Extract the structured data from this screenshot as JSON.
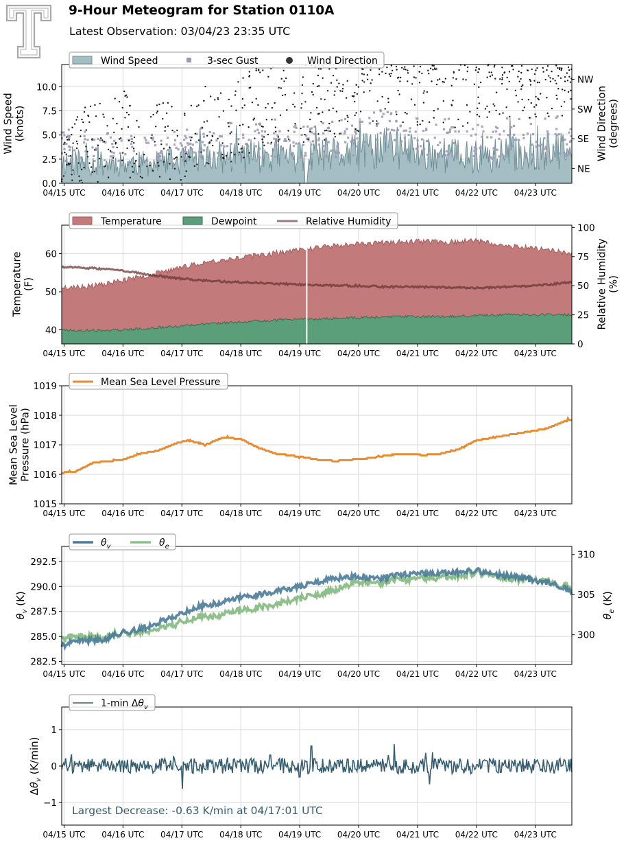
{
  "header": {
    "title": "9-Hour Meteogram for Station 0110A",
    "subtitle": "Latest Observation: 03/04/23 23:35 UTC"
  },
  "colors": {
    "wind_fill": "#a5bec3",
    "wind_line": "#6f8f97",
    "gust": "#a099b5",
    "direction": "#1a1a1a",
    "temperature": "#c37a7a",
    "temperature_line": "#a45b5b",
    "dewpoint": "#5b9f7a",
    "dewpoint_line": "#3e6a50",
    "rh": "#6b3535",
    "rh_legend": "#9a7a7a",
    "pressure": "#e68c33",
    "theta_v": "#4a7b99",
    "theta_e": "#8fbf8a",
    "delta": "#355d70"
  },
  "chart_data": [
    {
      "id": "wind",
      "type": "area",
      "xticks": [
        "04/15 UTC",
        "04/16 UTC",
        "04/17 UTC",
        "04/18 UTC",
        "04/19 UTC",
        "04/20 UTC",
        "04/21 UTC",
        "04/22 UTC",
        "04/23 UTC"
      ],
      "x_range_days": [
        14.96,
        23.62
      ],
      "ylabel_left": [
        "Wind Speed",
        "(knots)"
      ],
      "ylabel_right": [
        "Wind Direction",
        "(degrees)"
      ],
      "ylim": [
        0,
        12.3
      ],
      "yticks": [
        "0.0",
        "2.5",
        "5.0",
        "7.5",
        "10.0"
      ],
      "right_ticks": [
        "NE",
        "SE",
        "SW",
        "NW"
      ],
      "right_ylim": [
        0,
        360
      ],
      "legend": [
        "Wind Speed",
        "3-sec Gust",
        "Wind Direction"
      ],
      "series": [
        {
          "name": "Wind Speed",
          "x_days": [
            15.0,
            15.5,
            16.0,
            16.5,
            17.0,
            17.5,
            18.0,
            18.5,
            19.0,
            19.5,
            20.0,
            20.5,
            21.0,
            21.5,
            22.0,
            22.5,
            23.0,
            23.6
          ],
          "values": [
            2.2,
            2.0,
            2.1,
            2.0,
            2.3,
            2.6,
            2.8,
            3.0,
            2.6,
            2.9,
            3.1,
            3.8,
            3.2,
            3.0,
            2.6,
            3.0,
            3.2,
            3.2
          ]
        },
        {
          "name": "3-sec Gust",
          "x_days": [
            15.0,
            15.5,
            16.0,
            16.5,
            17.0,
            17.5,
            18.0,
            18.5,
            19.0,
            19.5,
            20.0,
            20.5,
            21.0,
            21.5,
            22.0,
            22.5,
            23.0,
            23.6
          ],
          "values": [
            4.0,
            3.8,
            3.7,
            3.6,
            4.0,
            4.3,
            4.6,
            4.8,
            4.3,
            4.7,
            5.0,
            5.6,
            5.0,
            4.8,
            4.3,
            4.8,
            5.0,
            5.0
          ]
        },
        {
          "name": "Wind Direction",
          "x_days": [
            15.0,
            15.5,
            16.0,
            16.5,
            17.0,
            17.5,
            18.0,
            18.5,
            19.0,
            19.5,
            20.0,
            20.5,
            21.0,
            21.5,
            22.0,
            22.5,
            23.0,
            23.6
          ],
          "values": [
            80,
            110,
            150,
            120,
            140,
            180,
            200,
            240,
            220,
            260,
            280,
            300,
            270,
            290,
            300,
            320,
            330,
            330
          ]
        }
      ]
    },
    {
      "id": "thermo",
      "type": "area",
      "xticks": [
        "04/15 UTC",
        "04/16 UTC",
        "04/17 UTC",
        "04/18 UTC",
        "04/19 UTC",
        "04/20 UTC",
        "04/21 UTC",
        "04/22 UTC",
        "04/23 UTC"
      ],
      "x_range_days": [
        14.96,
        23.62
      ],
      "ylabel_left": [
        "Temperature",
        "(F)"
      ],
      "ylabel_right": [
        "Relative Humidity",
        "(%)"
      ],
      "ylim": [
        36.3,
        67.5
      ],
      "yticks": [
        "40",
        "50",
        "60"
      ],
      "right_ylim": [
        0,
        102
      ],
      "right_yticks": [
        "0",
        "25",
        "50",
        "75",
        "100"
      ],
      "legend": [
        "Temperature",
        "Dewpoint",
        "Relative Humidity"
      ],
      "series": [
        {
          "name": "Temperature",
          "x_days": [
            14.96,
            15.5,
            16.0,
            16.5,
            17.0,
            17.5,
            18.0,
            18.5,
            19.0,
            19.5,
            20.0,
            20.5,
            21.0,
            21.5,
            22.0,
            22.5,
            23.0,
            23.62
          ],
          "values": [
            51.0,
            51.5,
            53.0,
            54.5,
            56.5,
            58.0,
            59.0,
            60.0,
            61.0,
            62.0,
            62.5,
            63.0,
            63.2,
            63.0,
            63.5,
            62.0,
            61.5,
            60.0
          ]
        },
        {
          "name": "Dewpoint",
          "x_days": [
            14.96,
            15.5,
            16.0,
            16.5,
            17.0,
            17.5,
            18.0,
            18.5,
            19.0,
            19.5,
            20.0,
            20.5,
            21.0,
            21.5,
            22.0,
            22.5,
            23.0,
            23.62
          ],
          "values": [
            40.0,
            39.8,
            40.0,
            40.5,
            41.0,
            41.7,
            42.0,
            42.5,
            42.8,
            43.0,
            43.2,
            43.4,
            43.5,
            43.5,
            43.7,
            44.0,
            44.0,
            44.0
          ]
        },
        {
          "name": "Relative Humidity",
          "x_days": [
            14.96,
            15.5,
            16.0,
            16.5,
            17.0,
            17.5,
            18.0,
            18.5,
            19.0,
            19.5,
            20.0,
            20.5,
            21.0,
            21.5,
            22.0,
            22.5,
            23.0,
            23.62
          ],
          "values": [
            66,
            65,
            63,
            59,
            56,
            54,
            53,
            52,
            51,
            50,
            50,
            49,
            49,
            48.5,
            48,
            49,
            50,
            53
          ]
        }
      ]
    },
    {
      "id": "pressure",
      "type": "line",
      "xticks": [
        "04/15 UTC",
        "04/16 UTC",
        "04/17 UTC",
        "04/18 UTC",
        "04/19 UTC",
        "04/20 UTC",
        "04/21 UTC",
        "04/22 UTC",
        "04/23 UTC"
      ],
      "x_range_days": [
        14.96,
        23.62
      ],
      "ylabel_left": [
        "Mean Sea Level",
        "Pressure (hPa)"
      ],
      "ylim": [
        1015,
        1019
      ],
      "yticks": [
        "1015",
        "1016",
        "1017",
        "1018",
        "1019"
      ],
      "legend": [
        "Mean Sea Level Pressure"
      ],
      "series": [
        {
          "name": "Mean Sea Level Pressure",
          "x_days": [
            14.96,
            15.2,
            15.5,
            15.8,
            16.0,
            16.3,
            16.6,
            16.9,
            17.1,
            17.4,
            17.7,
            18.0,
            18.3,
            18.6,
            19.0,
            19.3,
            19.6,
            19.9,
            20.2,
            20.5,
            20.8,
            21.1,
            21.4,
            21.7,
            22.0,
            22.3,
            22.6,
            22.9,
            23.2,
            23.5,
            23.62
          ],
          "values": [
            1016.05,
            1016.1,
            1016.4,
            1016.45,
            1016.5,
            1016.7,
            1016.8,
            1017.05,
            1017.15,
            1017.0,
            1017.25,
            1017.2,
            1016.9,
            1016.7,
            1016.6,
            1016.5,
            1016.45,
            1016.5,
            1016.55,
            1016.65,
            1016.7,
            1016.65,
            1016.7,
            1016.85,
            1017.15,
            1017.25,
            1017.35,
            1017.45,
            1017.55,
            1017.8,
            1017.85
          ]
        }
      ]
    },
    {
      "id": "theta",
      "type": "line",
      "xticks": [
        "04/15 UTC",
        "04/16 UTC",
        "04/17 UTC",
        "04/18 UTC",
        "04/19 UTC",
        "04/20 UTC",
        "04/21 UTC",
        "04/22 UTC",
        "04/23 UTC"
      ],
      "x_range_days": [
        14.96,
        23.62
      ],
      "ylim": [
        282.2,
        294.0
      ],
      "yticks": [
        "282.5",
        "285.0",
        "287.5",
        "290.0",
        "292.5"
      ],
      "right_ylim": [
        296.3,
        311.0
      ],
      "right_yticks": [
        "300",
        "305",
        "310"
      ],
      "legend": [
        "θv",
        "θe"
      ],
      "series": [
        {
          "name": "θv",
          "x_days": [
            14.96,
            15.3,
            15.6,
            16.0,
            16.3,
            16.6,
            17.0,
            17.3,
            17.6,
            18.0,
            18.3,
            18.6,
            19.0,
            19.3,
            19.6,
            20.0,
            20.3,
            20.6,
            21.0,
            21.3,
            21.6,
            22.0,
            22.3,
            22.6,
            23.0,
            23.3,
            23.62
          ],
          "values": [
            284.1,
            284.6,
            284.6,
            285.4,
            285.7,
            286.4,
            287.3,
            288.0,
            288.3,
            288.9,
            289.2,
            289.5,
            290.0,
            290.4,
            290.8,
            291.0,
            290.7,
            291.1,
            291.3,
            291.2,
            291.4,
            291.6,
            291.2,
            291.0,
            290.6,
            290.3,
            289.5
          ]
        },
        {
          "name": "θe",
          "x_days": [
            14.96,
            15.3,
            15.6,
            16.0,
            16.3,
            16.6,
            17.0,
            17.3,
            17.6,
            18.0,
            18.3,
            18.6,
            19.0,
            19.3,
            19.6,
            20.0,
            20.3,
            20.6,
            21.0,
            21.3,
            21.6,
            22.0,
            22.3,
            22.6,
            23.0,
            23.3,
            23.62
          ],
          "values": [
            299.5,
            299.8,
            299.6,
            300.2,
            300.3,
            300.8,
            301.6,
            302.2,
            302.4,
            303.0,
            303.4,
            303.8,
            304.6,
            304.9,
            305.5,
            306.7,
            306.3,
            306.8,
            307.0,
            307.0,
            307.2,
            307.8,
            307.3,
            306.9,
            306.9,
            306.6,
            305.8
          ]
        }
      ]
    },
    {
      "id": "delta",
      "type": "line",
      "xticks": [
        "04/15 UTC",
        "04/16 UTC",
        "04/17 UTC",
        "04/18 UTC",
        "04/19 UTC",
        "04/20 UTC",
        "04/21 UTC",
        "04/22 UTC",
        "04/23 UTC"
      ],
      "x_range_days": [
        14.96,
        23.62
      ],
      "ylim": [
        -1.62,
        1.62
      ],
      "yticks": [
        "−1",
        "0",
        "1"
      ],
      "legend": [
        "1-min Δθv"
      ],
      "annotation": "Largest Decrease: -0.63 K/min at 04/17:01 UTC",
      "series": [
        {
          "name": "1-min Δθv",
          "x_days": [
            14.96,
            15.5,
            16.0,
            16.5,
            17.01,
            17.5,
            18.0,
            18.5,
            19.0,
            19.2,
            19.5,
            20.0,
            20.5,
            20.6,
            21.0,
            21.2,
            21.5,
            22.0,
            22.5,
            23.0,
            23.62
          ],
          "values": [
            0.05,
            0.1,
            -0.1,
            0.15,
            -0.63,
            0.2,
            -0.2,
            0.3,
            -0.3,
            0.55,
            0.1,
            -0.2,
            0.3,
            0.6,
            -0.2,
            -0.5,
            0.1,
            -0.1,
            0.15,
            -0.1,
            -0.1
          ]
        }
      ]
    }
  ]
}
